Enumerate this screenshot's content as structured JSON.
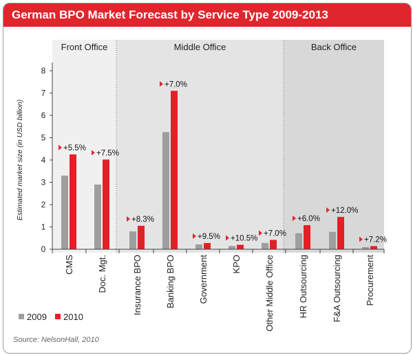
{
  "title": "German BPO Market Forecast by Service Type 2009-2013",
  "source": "Source: NelsonHall, 2010",
  "colors": {
    "accent": "#e0262d",
    "series_2009": "#9e9e9e",
    "series_2010": "#e51f26"
  },
  "chart_data": {
    "type": "bar",
    "title": "German BPO Market Forecast by Service Type 2009-2013",
    "ylabel": "Estimated market size (in USD billion)",
    "xlabel": "",
    "ylim": [
      0,
      8
    ],
    "yticks": [
      0,
      1,
      2,
      3,
      4,
      5,
      6,
      7,
      8
    ],
    "grid": false,
    "legend_position": "bottom-left",
    "groups": [
      {
        "name": "Front Office",
        "categories": [
          "CMS",
          "Doc. Mgt."
        ]
      },
      {
        "name": "Middle Office",
        "categories": [
          "Insurance BPO",
          "Banking BPO",
          "Government",
          "KPO",
          "Other Middle Office"
        ]
      },
      {
        "name": "Back Office",
        "categories": [
          "HR Outsourcing",
          "F&A Outsourcing",
          "Procurement"
        ]
      }
    ],
    "categories": [
      "CMS",
      "Doc. Mgt.",
      "Insurance BPO",
      "Banking BPO",
      "Government",
      "KPO",
      "Other Middle Office",
      "HR Outsourcing",
      "F&A Outsourcing",
      "Procurement"
    ],
    "series": [
      {
        "name": "2009",
        "values": [
          3.3,
          2.9,
          0.8,
          5.25,
          0.22,
          0.15,
          0.28,
          0.72,
          0.78,
          0.1
        ]
      },
      {
        "name": "2010",
        "values": [
          4.25,
          4.02,
          1.05,
          7.1,
          0.28,
          0.2,
          0.42,
          1.08,
          1.45,
          0.14
        ]
      }
    ],
    "annotations": [
      "+5.5%",
      "+7.5%",
      "+8.3%",
      "+7.0%",
      "+9.5%",
      "+10.5%",
      "+7.0%",
      "+6.0%",
      "+12.0%",
      "+7.2%"
    ]
  }
}
